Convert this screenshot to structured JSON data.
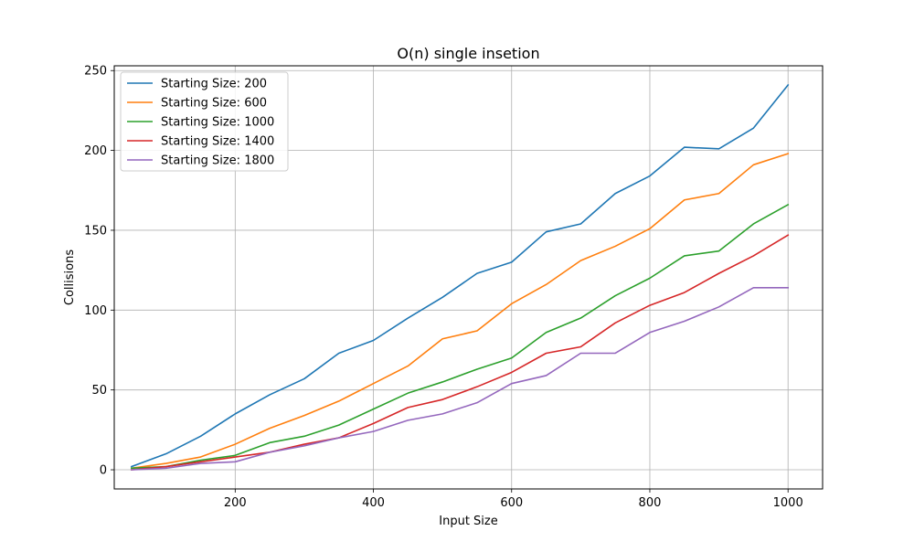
{
  "chart_data": {
    "type": "line",
    "title": "O(n) single insetion",
    "xlabel": "Input Size",
    "ylabel": "Collisions",
    "xlim": [
      25,
      1050
    ],
    "ylim": [
      -12,
      253
    ],
    "xticks": [
      200,
      400,
      600,
      800,
      1000
    ],
    "yticks": [
      0,
      50,
      100,
      150,
      200,
      250
    ],
    "grid": true,
    "legend_position": "top-left",
    "x": [
      50,
      100,
      150,
      200,
      250,
      300,
      350,
      400,
      450,
      500,
      550,
      600,
      650,
      700,
      750,
      800,
      850,
      900,
      950,
      1000
    ],
    "series": [
      {
        "name": "Starting Size: 200",
        "color": "#1f77b4",
        "values": [
          2,
          10,
          21,
          35,
          47,
          57,
          73,
          81,
          95,
          108,
          123,
          130,
          149,
          154,
          173,
          184,
          202,
          201,
          214,
          241
        ]
      },
      {
        "name": "Starting Size: 600",
        "color": "#ff7f0e",
        "values": [
          1,
          4,
          8,
          16,
          26,
          34,
          43,
          54,
          65,
          82,
          87,
          104,
          116,
          131,
          140,
          151,
          169,
          173,
          191,
          198
        ]
      },
      {
        "name": "Starting Size: 1000",
        "color": "#2ca02c",
        "values": [
          1,
          2,
          6,
          9,
          17,
          21,
          28,
          38,
          48,
          55,
          63,
          70,
          86,
          95,
          109,
          120,
          134,
          137,
          154,
          166
        ]
      },
      {
        "name": "Starting Size: 1400",
        "color": "#d62728",
        "values": [
          0,
          2,
          5,
          8,
          11,
          16,
          20,
          29,
          39,
          44,
          52,
          61,
          73,
          77,
          92,
          103,
          111,
          123,
          134,
          147
        ]
      },
      {
        "name": "Starting Size: 1800",
        "color": "#9467bd",
        "values": [
          0,
          1,
          4,
          5,
          11,
          15,
          20,
          24,
          31,
          35,
          42,
          54,
          59,
          73,
          73,
          86,
          93,
          102,
          114,
          114
        ]
      }
    ]
  }
}
